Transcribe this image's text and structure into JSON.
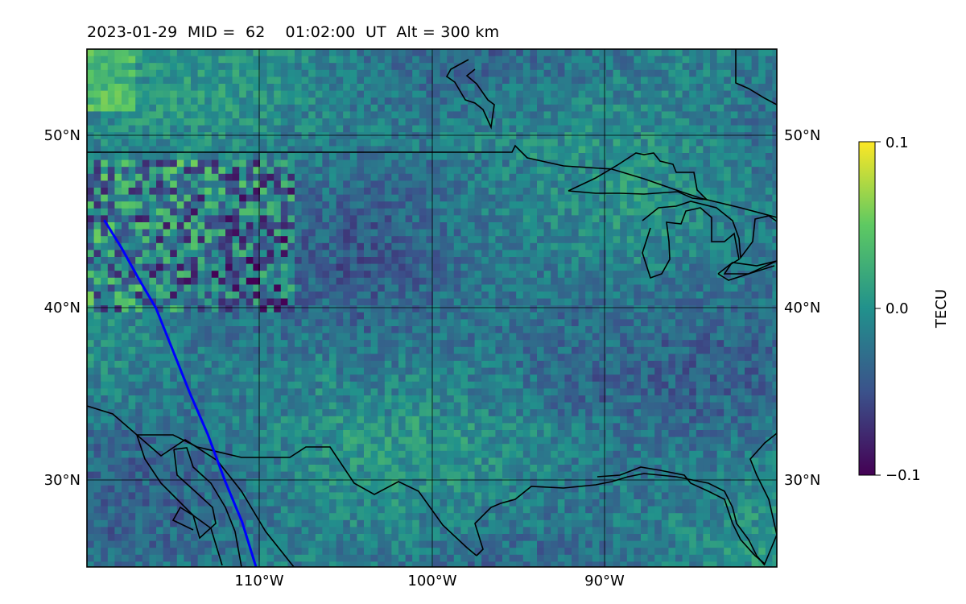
{
  "title": {
    "date": "2023-01-29",
    "mid_label": "MID =",
    "mid_value": "62",
    "time": "01:02:00",
    "time_unit": "UT",
    "alt_label": "Alt =",
    "alt_value": "300",
    "alt_unit": "km"
  },
  "map": {
    "lon_range": [
      -120,
      -80
    ],
    "lat_range": [
      25,
      55
    ],
    "lat_gridlines": [
      30,
      40,
      50
    ],
    "lon_gridlines": [
      -110,
      -100,
      -90
    ],
    "lat_ticks_left": [
      "30°N",
      "40°N",
      "50°N"
    ],
    "lat_ticks_right": [
      "30°N",
      "40°N",
      "50°N"
    ],
    "lon_ticks": [
      "110°W",
      "100°W",
      "90°W"
    ],
    "field": "TEC perturbation",
    "colormap": "viridis",
    "track_color": "#0000ff",
    "coastline_color": "#000000",
    "satellite_track": [
      [
        -119.0,
        45.1
      ],
      [
        -118.0,
        43.5
      ],
      [
        -117.0,
        41.7
      ],
      [
        -116.0,
        40.0
      ],
      [
        -115.0,
        37.5
      ],
      [
        -114.0,
        35.0
      ],
      [
        -113.0,
        32.7
      ],
      [
        -112.0,
        30.0
      ],
      [
        -111.0,
        27.6
      ],
      [
        -110.2,
        25.0
      ]
    ]
  },
  "colorbar": {
    "label": "TECU",
    "ticks": [
      "0.1",
      "0.0",
      "−0.1"
    ],
    "range": [
      -0.1,
      0.1
    ],
    "stops": [
      "#440154",
      "#3b528b",
      "#21918c",
      "#5ec962",
      "#fde725"
    ]
  }
}
